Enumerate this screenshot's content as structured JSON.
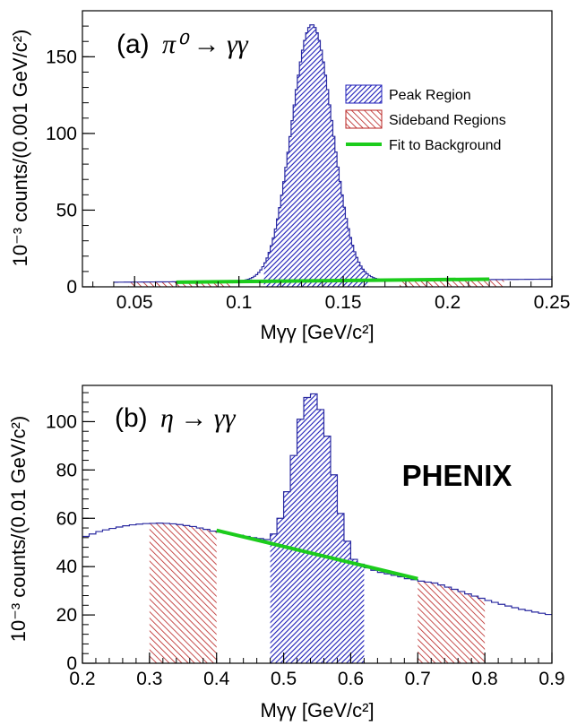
{
  "chart_data": [
    {
      "type": "histogram",
      "panel_label": "(a)",
      "title_math": "π⁰ → γγ",
      "xlabel": "Mγγ [GeV/c²]",
      "ylabel": "10⁻³ counts/(0.001 GeV/c²)",
      "xlim": [
        0.025,
        0.25
      ],
      "ylim": [
        0,
        180
      ],
      "xticks": [
        "0.05",
        "0.1",
        "0.15",
        "0.2",
        "0.25"
      ],
      "yticks": [
        "0",
        "50",
        "100",
        "150"
      ],
      "histogram": {
        "x_start": 0.04,
        "bin_width": 0.001,
        "peak_center": 0.135,
        "peak_height": 171,
        "peak_sigma": 0.0098,
        "background_left": 3.0,
        "background_right": 5.0
      },
      "peak_region": [
        0.112,
        0.162
      ],
      "sideband_regions": [
        [
          0.047,
          0.097
        ],
        [
          0.177,
          0.227
        ]
      ],
      "fit_to_background": {
        "x_range": [
          0.07,
          0.22
        ],
        "y_left": 3.0,
        "y_right": 5.0
      },
      "legend": {
        "position": "upper-right",
        "entries": [
          "Peak Region",
          "Sideband Regions",
          "Fit to Background"
        ]
      }
    },
    {
      "type": "histogram",
      "panel_label": "(b)",
      "title_math": "η → γγ",
      "xlabel": "Mγγ [GeV/c²]",
      "ylabel": "10⁻³ counts/(0.01 GeV/c²)",
      "xlim": [
        0.2,
        0.9
      ],
      "ylim": [
        0,
        115
      ],
      "xticks": [
        "0.2",
        "0.3",
        "0.4",
        "0.5",
        "0.6",
        "0.7",
        "0.8",
        "0.9"
      ],
      "yticks": [
        "0",
        "20",
        "40",
        "60",
        "80",
        "100"
      ],
      "histogram": {
        "x_start": 0.2,
        "bin_width": 0.01,
        "values": [
          52.5,
          53.5,
          54.5,
          55.2,
          55.8,
          56.4,
          56.9,
          57.3,
          57.6,
          57.8,
          57.9,
          58.0,
          57.9,
          57.7,
          57.4,
          57.0,
          56.6,
          56.0,
          55.4,
          54.7,
          54.3,
          53.8,
          53.4,
          53.0,
          52.5,
          52.0,
          51.6,
          51.2,
          53.5,
          60.0,
          71.0,
          86.0,
          101.0,
          110.0,
          111.5,
          105.0,
          94.0,
          78.0,
          62.0,
          50.5,
          43.0,
          41.0,
          39.5,
          38.5,
          37.6,
          37.0,
          36.4,
          35.8,
          35.0,
          34.6,
          34.0,
          33.6,
          33.2,
          32.4,
          31.5,
          30.6,
          29.7,
          28.7,
          27.8,
          26.9,
          26.0,
          25.2,
          24.4,
          23.7,
          23.0,
          22.3,
          21.8,
          21.2,
          20.7,
          20.2
        ]
      },
      "peak_region": [
        0.48,
        0.62
      ],
      "sideband_regions": [
        [
          0.3,
          0.4
        ],
        [
          0.7,
          0.8
        ]
      ],
      "fit_to_background": {
        "x_range": [
          0.4,
          0.7
        ],
        "y_left": 55.0,
        "y_right": 35.0
      },
      "annotation": "PHENIX"
    }
  ],
  "colors": {
    "peak": "#1d1db8",
    "sideband": "#b8201f",
    "fit": "#1ccc1c",
    "histogram_line": "#2a2aa0"
  }
}
